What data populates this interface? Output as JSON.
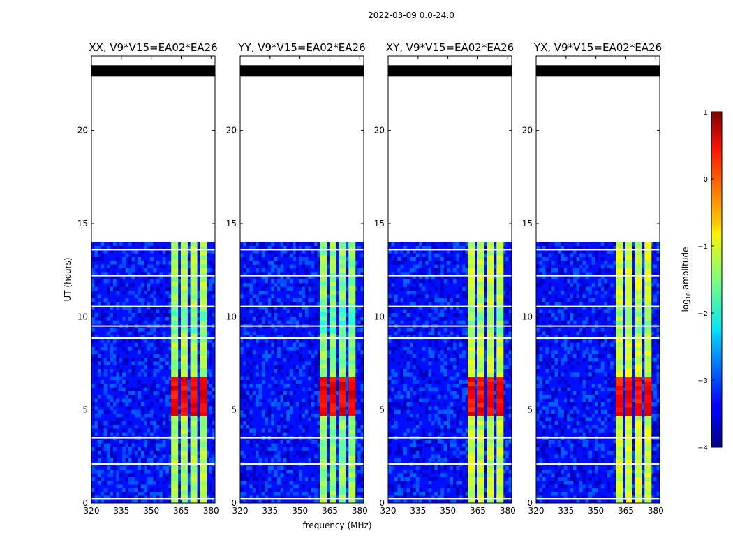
{
  "chart_data": {
    "type": "heatmap",
    "suptitle": "2022-03-09 0.0-24.0",
    "xlabel": "frequency (MHz)",
    "ylabel": "UT (hours)",
    "xlim": [
      320,
      382
    ],
    "ylim": [
      0,
      24
    ],
    "xticks": [
      "320",
      "335",
      "350",
      "365",
      "380"
    ],
    "yticks": [
      "0",
      "5",
      "10",
      "15",
      "20"
    ],
    "colorbar": {
      "label": "log10 amplitude",
      "label_main": "log",
      "label_sub": "10",
      "label_tail": " amplitude",
      "range": [
        -4,
        1
      ],
      "ticks": [
        "−4",
        "−3",
        "−2",
        "−1",
        "0",
        "1"
      ],
      "colormap": "jet"
    },
    "panels": [
      {
        "title": "XX, V9*V15=EA02*EA26",
        "band_intensity": 1.0
      },
      {
        "title": "YY, V9*V15=EA02*EA26",
        "band_intensity": 1.1
      },
      {
        "title": "XY, V9*V15=EA02*EA26",
        "band_intensity": 0.9
      },
      {
        "title": "YX, V9*V15=EA02*EA26",
        "band_intensity": 0.85
      }
    ],
    "data_hours": [
      0,
      14
    ],
    "flagged_hours": [
      [
        22.9,
        23.5
      ]
    ],
    "rfi_band_mhz": [
      360,
      379
    ],
    "subbands_mhz": [
      [
        360,
        363.5
      ],
      [
        364.8,
        368.3
      ],
      [
        369.6,
        373.1
      ],
      [
        374.4,
        377.9
      ]
    ],
    "peak_hours": [
      4.5,
      6.6
    ],
    "peak_log_amplitude": 0.4,
    "baseline_log_amplitude": -3.3,
    "band_log_amplitude": -1.3,
    "gap_hours": [
      0.25,
      2.1,
      3.5,
      8.85,
      9.5,
      10.55,
      12.2,
      13.6
    ]
  }
}
